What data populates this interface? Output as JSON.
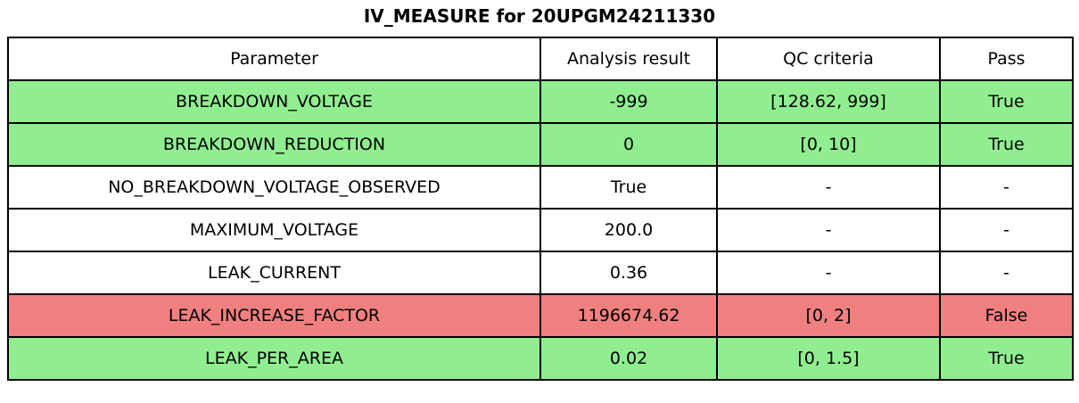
{
  "chart_data": {
    "type": "table",
    "title": "IV_MEASURE for 20UPGM24211330",
    "columns": [
      "Parameter",
      "Analysis result",
      "QC criteria",
      "Pass"
    ],
    "rows": [
      {
        "parameter": "BREAKDOWN_VOLTAGE",
        "analysis_result": "-999",
        "qc_criteria": "[128.62, 999]",
        "pass": "True",
        "status": "pass"
      },
      {
        "parameter": "BREAKDOWN_REDUCTION",
        "analysis_result": "0",
        "qc_criteria": "[0, 10]",
        "pass": "True",
        "status": "pass"
      },
      {
        "parameter": "NO_BREAKDOWN_VOLTAGE_OBSERVED",
        "analysis_result": "True",
        "qc_criteria": "-",
        "pass": "-",
        "status": "neutral"
      },
      {
        "parameter": "MAXIMUM_VOLTAGE",
        "analysis_result": "200.0",
        "qc_criteria": "-",
        "pass": "-",
        "status": "neutral"
      },
      {
        "parameter": "LEAK_CURRENT",
        "analysis_result": "0.36",
        "qc_criteria": "-",
        "pass": "-",
        "status": "neutral"
      },
      {
        "parameter": "LEAK_INCREASE_FACTOR",
        "analysis_result": "1196674.62",
        "qc_criteria": "[0, 2]",
        "pass": "False",
        "status": "fail"
      },
      {
        "parameter": "LEAK_PER_AREA",
        "analysis_result": "0.02",
        "qc_criteria": "[0, 1.5]",
        "pass": "True",
        "status": "pass"
      }
    ],
    "row_colors": {
      "pass": "#90ee90",
      "fail": "#f08080",
      "neutral": "#ffffff"
    },
    "layout": {
      "grid": true,
      "border_color": "#000000",
      "header_background": "#ffffff"
    }
  }
}
